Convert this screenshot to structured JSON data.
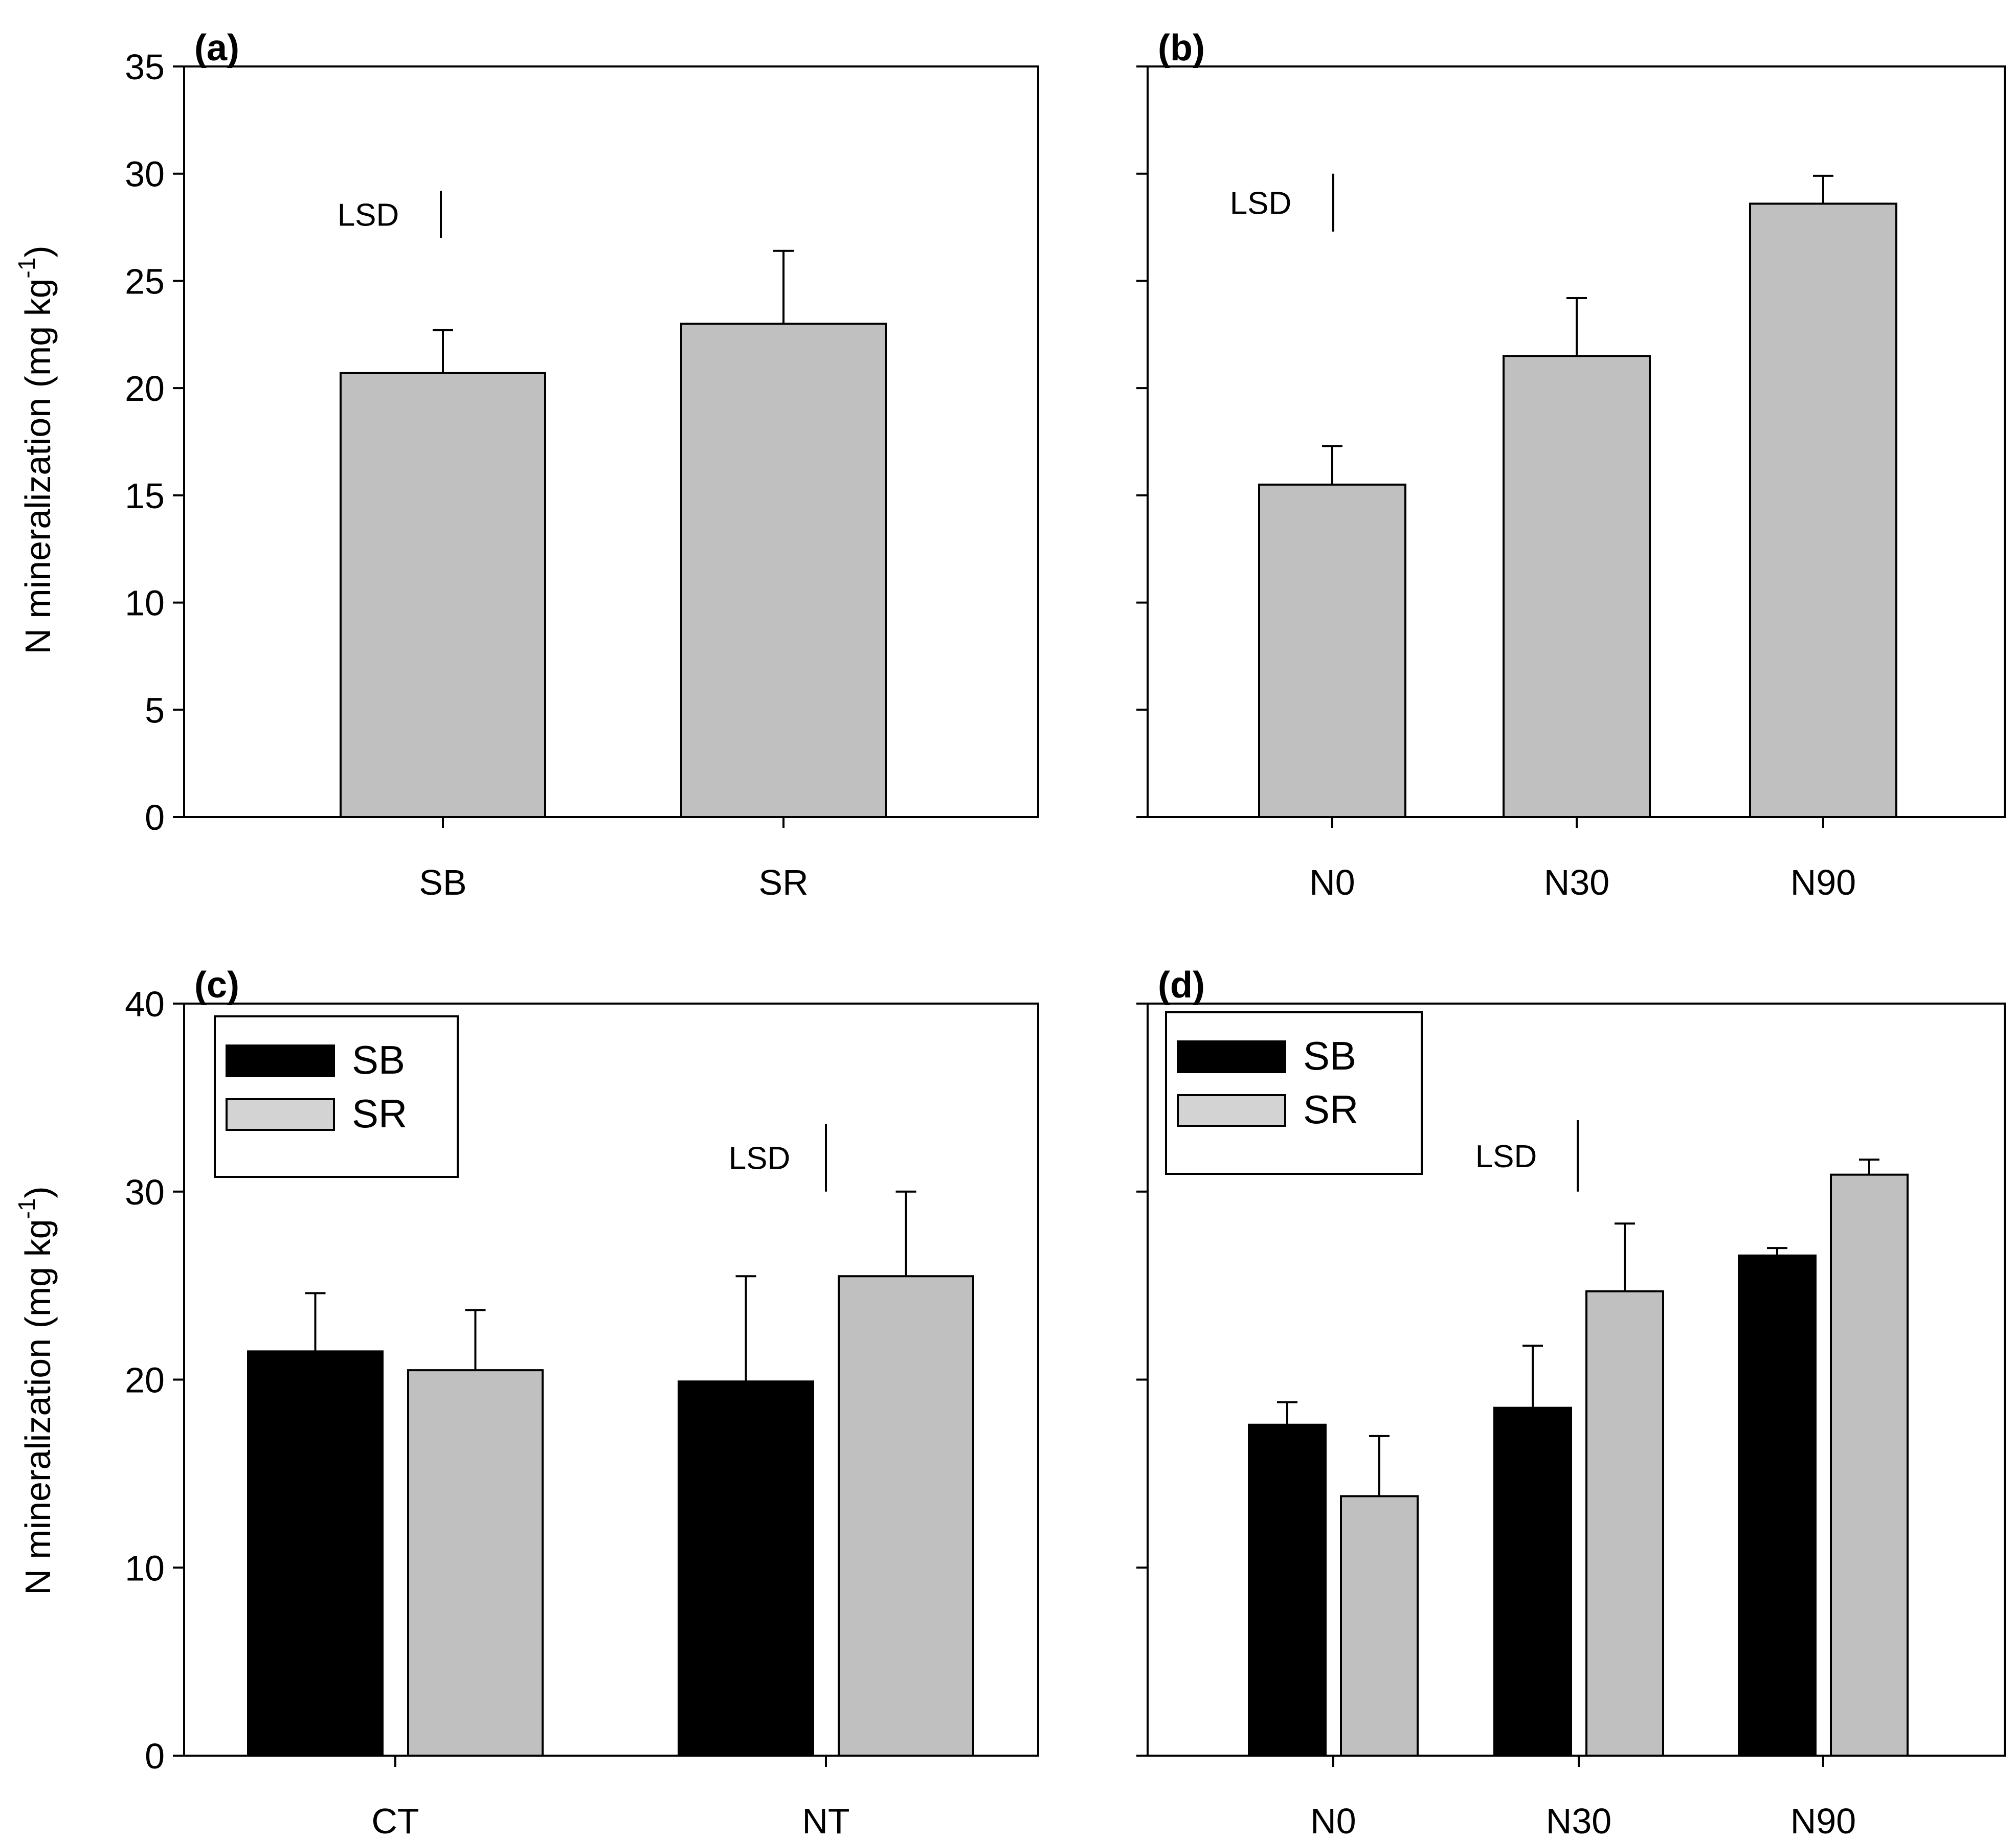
{
  "y_axis_title": "N mineralization (mg kg",
  "y_axis_sup": "-1",
  "y_axis_close": ")",
  "legend_series": [
    "SB",
    "SR"
  ],
  "colors": {
    "SB": "#000000",
    "SR": "#c0c0c0",
    "single": "#c0c0c0",
    "legend_SR": "#d3d3d3"
  },
  "chart_data": [
    {
      "id": "a",
      "panel_label": "(a)",
      "type": "bar",
      "categories": [
        "SB",
        "SR"
      ],
      "series": [
        {
          "name": "",
          "values": [
            20.7,
            23.0
          ],
          "errors": [
            2.0,
            3.4
          ]
        }
      ],
      "ylim": [
        0,
        35
      ],
      "yticks": [
        0,
        5,
        10,
        15,
        20,
        25,
        30,
        35
      ],
      "ytick_labels": true,
      "lsd": {
        "label": "LSD",
        "low": 27.0,
        "high": 29.2
      },
      "legend": false
    },
    {
      "id": "b",
      "panel_label": "(b)",
      "type": "bar",
      "categories": [
        "N0",
        "N30",
        "N90"
      ],
      "series": [
        {
          "name": "",
          "values": [
            15.5,
            21.5,
            28.6
          ],
          "errors": [
            1.8,
            2.7,
            1.3
          ]
        }
      ],
      "ylim": [
        0,
        35
      ],
      "yticks": [
        0,
        5,
        10,
        15,
        20,
        25,
        30,
        35
      ],
      "ytick_labels": false,
      "lsd": {
        "label": "LSD",
        "low": 27.3,
        "high": 30.0
      },
      "legend": false
    },
    {
      "id": "c",
      "panel_label": "(c)",
      "type": "bar",
      "categories": [
        "CT",
        "NT"
      ],
      "series": [
        {
          "name": "SB",
          "values": [
            21.5,
            19.9
          ],
          "errors": [
            3.1,
            5.6
          ]
        },
        {
          "name": "SR",
          "values": [
            20.5,
            25.5
          ],
          "errors": [
            3.2,
            4.5
          ]
        }
      ],
      "ylim": [
        0,
        40
      ],
      "yticks": [
        0,
        10,
        20,
        30,
        40
      ],
      "ytick_labels": true,
      "lsd": {
        "label": "LSD",
        "low": 30.0,
        "high": 33.6
      },
      "legend": true
    },
    {
      "id": "d",
      "panel_label": "(d)",
      "type": "bar",
      "categories": [
        "N0",
        "N30",
        "N90"
      ],
      "series": [
        {
          "name": "SB",
          "values": [
            17.6,
            18.5,
            26.6
          ],
          "errors": [
            1.2,
            3.3,
            0.4
          ]
        },
        {
          "name": "SR",
          "values": [
            13.8,
            24.7,
            30.9
          ],
          "errors": [
            3.2,
            3.6,
            0.8
          ]
        }
      ],
      "ylim": [
        0,
        40
      ],
      "yticks": [
        0,
        10,
        20,
        30,
        40
      ],
      "ytick_labels": false,
      "lsd": {
        "label": "LSD",
        "low": 30.0,
        "high": 33.8
      },
      "legend": true
    }
  ]
}
